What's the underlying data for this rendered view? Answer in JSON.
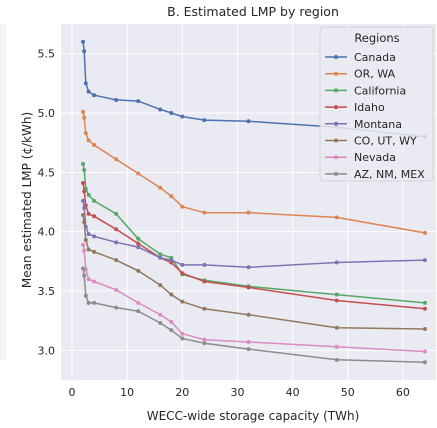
{
  "chart_data": {
    "type": "line",
    "title": "B. Estimated LMP by region",
    "xlabel": "WECC-wide storage capacity (TWh)",
    "ylabel": "Mean estimated LMP (¢/kWh)",
    "xlim": [
      -2,
      66
    ],
    "ylim": [
      2.75,
      5.75
    ],
    "xticks": [
      0,
      10,
      20,
      30,
      40,
      50,
      60
    ],
    "yticks": [
      3.0,
      3.5,
      4.0,
      4.5,
      5.0,
      5.5
    ],
    "xtick_labels": [
      "0",
      "10",
      "20",
      "30",
      "40",
      "50",
      "60"
    ],
    "ytick_labels": [
      "3.0",
      "3.5",
      "4.0",
      "4.5",
      "5.0",
      "5.5"
    ],
    "grid": true,
    "legend_title": "Regions",
    "legend_position": "top-right",
    "x": [
      2,
      2.2,
      2.5,
      3,
      4,
      8,
      12,
      16,
      18,
      20,
      24,
      32,
      48,
      64
    ],
    "series": [
      {
        "name": "Canada",
        "color": "#4c72b0",
        "values": [
          5.6,
          5.52,
          5.25,
          5.18,
          5.15,
          5.11,
          5.1,
          5.03,
          5.0,
          4.97,
          4.94,
          4.93,
          4.88,
          4.8
        ]
      },
      {
        "name": "OR, WA",
        "color": "#dd8452",
        "values": [
          5.01,
          4.96,
          4.83,
          4.77,
          4.73,
          4.61,
          4.49,
          4.37,
          4.3,
          4.21,
          4.16,
          4.16,
          4.12,
          3.99
        ]
      },
      {
        "name": "California",
        "color": "#55a868",
        "values": [
          4.57,
          4.52,
          4.36,
          4.31,
          4.26,
          4.15,
          3.94,
          3.81,
          3.78,
          3.64,
          3.59,
          3.54,
          3.47,
          3.4
        ]
      },
      {
        "name": "Idaho",
        "color": "#c44e52",
        "values": [
          4.41,
          4.34,
          4.22,
          4.15,
          4.13,
          4.02,
          3.9,
          3.78,
          3.74,
          3.65,
          3.58,
          3.53,
          3.42,
          3.35
        ]
      },
      {
        "name": "Montana",
        "color": "#8172b3",
        "values": [
          4.26,
          4.2,
          4.04,
          3.98,
          3.96,
          3.91,
          3.87,
          3.78,
          3.76,
          3.72,
          3.72,
          3.7,
          3.74,
          3.76
        ]
      },
      {
        "name": "CO, UT, WY",
        "color": "#937860",
        "values": [
          4.14,
          4.08,
          3.93,
          3.85,
          3.83,
          3.76,
          3.67,
          3.55,
          3.47,
          3.41,
          3.35,
          3.3,
          3.19,
          3.18
        ]
      },
      {
        "name": "Nevada",
        "color": "#da8bc3",
        "values": [
          3.89,
          3.84,
          3.68,
          3.6,
          3.58,
          3.51,
          3.4,
          3.3,
          3.24,
          3.14,
          3.09,
          3.07,
          3.03,
          2.99
        ]
      },
      {
        "name": "AZ, NM, MEX",
        "color": "#8c8c8c",
        "values": [
          3.69,
          3.63,
          3.46,
          3.4,
          3.4,
          3.36,
          3.33,
          3.23,
          3.17,
          3.1,
          3.06,
          3.01,
          2.92,
          2.9
        ]
      }
    ]
  }
}
